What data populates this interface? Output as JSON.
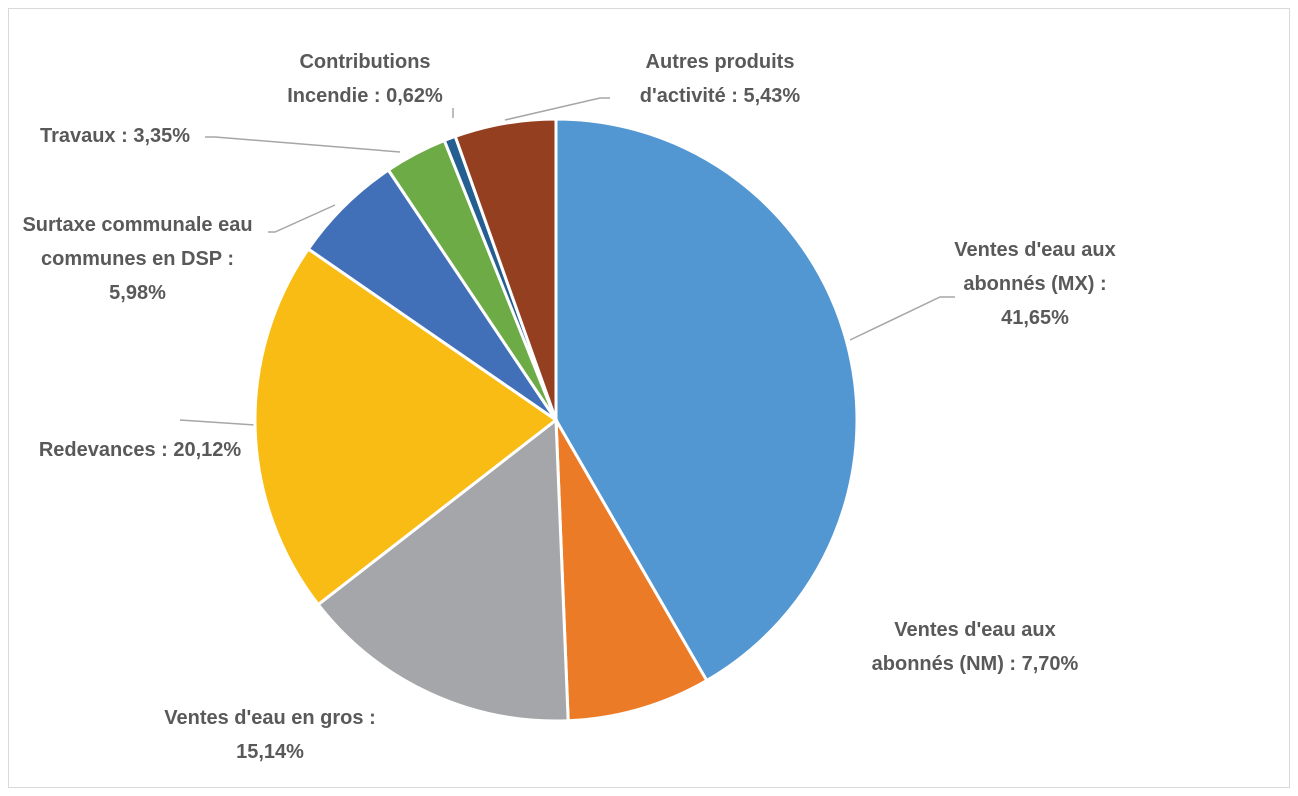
{
  "chart_data": {
    "type": "pie",
    "values": [
      41.65,
      7.7,
      15.14,
      20.12,
      5.98,
      3.35,
      0.62,
      5.43
    ],
    "value_labels": [
      "Ventes d'eau aux abonnés (MX) : 41,65%",
      "Ventes d'eau aux abonnés (NM) : 7,70%",
      "Ventes d'eau en gros : 15,14%",
      "Redevances : 20,12%",
      "Surtaxe communale eau communes en DSP : 5,98%",
      "Travaux : 3,35%",
      "Contributions Incendie : 0,62%",
      "Autres produits d'activité : 5,43%"
    ],
    "colors": [
      "#5296d2",
      "#ec7b27",
      "#a5a6a9",
      "#f9bc15",
      "#4270b8",
      "#6cab46",
      "#255e91",
      "#953f21"
    ]
  }
}
